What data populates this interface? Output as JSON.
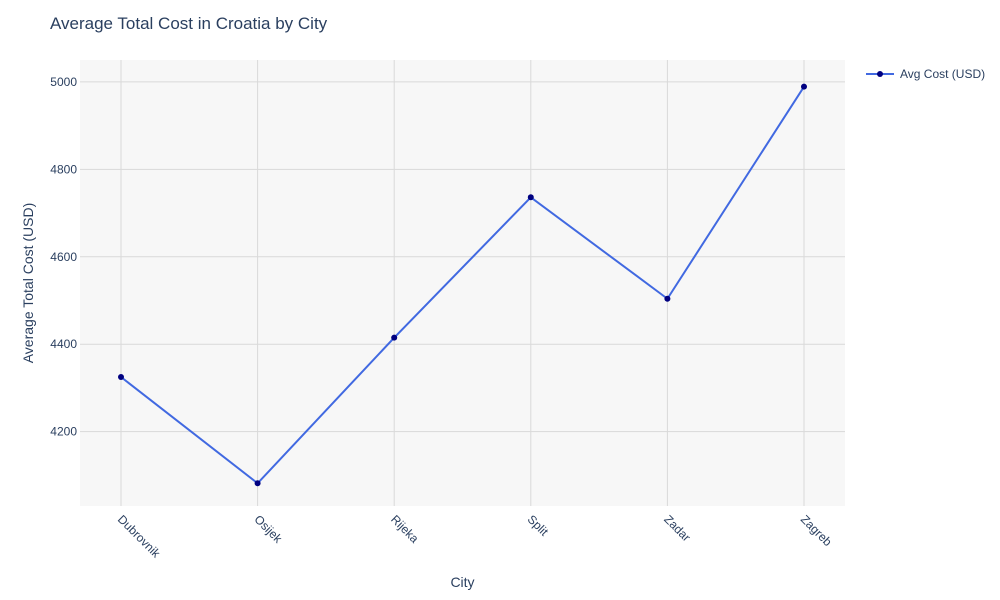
{
  "chart_data": {
    "type": "line",
    "title": "Average Total Cost in Croatia by City",
    "xlabel": "City",
    "ylabel": "Average Total Cost (USD)",
    "categories": [
      "Dubrovnik",
      "Osijek",
      "Rijeka",
      "Split",
      "Zadar",
      "Zagreb"
    ],
    "series": [
      {
        "name": "Avg Cost (USD)",
        "values": [
          4325,
          4082,
          4415,
          4736,
          4504,
          4989
        ]
      }
    ],
    "ylim": [
      4030,
      5050
    ],
    "yticks": [
      4200,
      4400,
      4600,
      4800,
      5000
    ],
    "grid": true,
    "legend_position": "top-right",
    "colors": {
      "line": "#4169e1",
      "marker": "#000080",
      "plot_background": "#f7f7f7",
      "grid": "#d9d9d9",
      "text": "#2a3f5f"
    }
  }
}
